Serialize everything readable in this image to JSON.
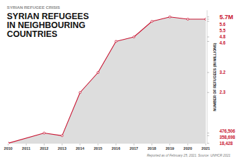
{
  "chart_data": {
    "type": "area",
    "subtitle": "SYRIAN REFUGEE CRISIS",
    "title": "SYRIAN REFUGEES IN NEIGHBOURING COUNTRIES",
    "y_label": "NUMBER OF REFUGEES (IN MILLIONS)",
    "annotations": [
      "Reported as of February 25, 2021. Source: UNHCR 2021"
    ],
    "x": [
      2010,
      2012,
      2013,
      2014,
      2015,
      2016,
      2017,
      2018,
      2019,
      2020,
      2021
    ],
    "values": [
      0.018428,
      0.476506,
      0.358698,
      2.3,
      3.2,
      4.6,
      4.8,
      5.5,
      5.7,
      5.6,
      5.6
    ],
    "color": "#c8102e",
    "marker": "circle",
    "xlim": [
      2010,
      2021
    ],
    "xticks": [
      2010,
      2011,
      2012,
      2013,
      2014,
      2015,
      2016,
      2017,
      2018,
      2019,
      2020,
      2021
    ],
    "ylim": [
      0,
      6
    ],
    "yticks": [
      {
        "value": 0.018428,
        "label": "18,428"
      },
      {
        "value": 0.358698,
        "label": "358,698"
      },
      {
        "value": 0.476506,
        "label": "476,506"
      },
      2.3,
      3.2,
      4.6,
      4.8,
      5.5,
      5.6,
      {
        "value": 5.7,
        "label": "5.7M"
      }
    ],
    "grid": false
  }
}
